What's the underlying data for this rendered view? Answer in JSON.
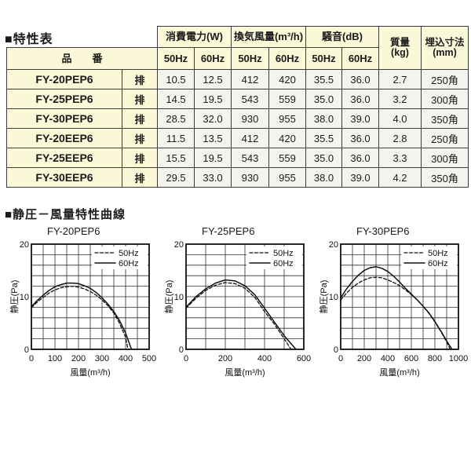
{
  "page": {
    "title": "■特性表",
    "section2_title": "■静圧－風量特性曲線"
  },
  "colors": {
    "header_bg": "#fbf8d8",
    "cell_bg": "#f4f4ee",
    "border": "#3c3c3c",
    "curve": "#111111"
  },
  "table": {
    "header": {
      "product_label": "品　　番",
      "groups": [
        {
          "label": "消費電力(W)",
          "sub": [
            "50Hz",
            "60Hz"
          ]
        },
        {
          "label": "換気風量(m³/h)",
          "sub": [
            "50Hz",
            "60Hz"
          ]
        },
        {
          "label": "騒音(dB)",
          "sub": [
            "50Hz",
            "60Hz"
          ]
        }
      ],
      "mass_label": [
        "質量",
        "(kg)"
      ],
      "dim_label": [
        "埋込寸法",
        "(mm)"
      ]
    },
    "rows": [
      {
        "model": "FY-20PEP6",
        "type": "排",
        "values": [
          "10.5",
          "12.5",
          "412",
          "420",
          "35.5",
          "36.0",
          "2.7",
          "250角"
        ]
      },
      {
        "model": "FY-25PEP6",
        "type": "排",
        "values": [
          "14.5",
          "19.5",
          "543",
          "559",
          "35.0",
          "36.0",
          "3.2",
          "300角"
        ]
      },
      {
        "model": "FY-30PEP6",
        "type": "排",
        "values": [
          "28.5",
          "32.0",
          "930",
          "955",
          "38.0",
          "39.0",
          "4.0",
          "350角"
        ]
      },
      {
        "model": "FY-20EEP6",
        "type": "排",
        "values": [
          "11.5",
          "13.5",
          "412",
          "420",
          "35.5",
          "36.0",
          "2.8",
          "250角"
        ]
      },
      {
        "model": "FY-25EEP6",
        "type": "排",
        "values": [
          "15.5",
          "19.5",
          "543",
          "559",
          "35.0",
          "36.0",
          "3.3",
          "300角"
        ]
      },
      {
        "model": "FY-30EEP6",
        "type": "排",
        "values": [
          "29.5",
          "33.0",
          "930",
          "955",
          "38.0",
          "39.0",
          "4.2",
          "350角"
        ]
      }
    ]
  },
  "chart_data": [
    {
      "type": "line",
      "title": "FY-20PEP6",
      "xlabel": "風量(m³/h)",
      "ylabel": "静圧(Pa)",
      "xlim": [
        0,
        500
      ],
      "ylim": [
        0,
        20
      ],
      "xgrid_step": 50,
      "ygrid_step": 2,
      "xticks": [
        0,
        100,
        200,
        300,
        400,
        500
      ],
      "yticks": [
        0,
        10,
        20
      ],
      "grid": true,
      "legend_position": "top-right",
      "series": [
        {
          "name": "50Hz",
          "style": "dashed",
          "points": [
            [
              0,
              7.9
            ],
            [
              25,
              9.0
            ],
            [
              50,
              9.9
            ],
            [
              75,
              10.7
            ],
            [
              100,
              11.3
            ],
            [
              125,
              11.7
            ],
            [
              150,
              11.9
            ],
            [
              175,
              12.0
            ],
            [
              200,
              11.8
            ],
            [
              225,
              11.5
            ],
            [
              250,
              11.0
            ],
            [
              275,
              10.3
            ],
            [
              300,
              9.4
            ],
            [
              325,
              8.3
            ],
            [
              350,
              6.9
            ],
            [
              375,
              4.9
            ],
            [
              400,
              2.3
            ],
            [
              410,
              0
            ]
          ]
        },
        {
          "name": "60Hz",
          "style": "solid",
          "points": [
            [
              0,
              8.1
            ],
            [
              25,
              9.3
            ],
            [
              50,
              10.3
            ],
            [
              75,
              11.2
            ],
            [
              100,
              11.9
            ],
            [
              125,
              12.3
            ],
            [
              150,
              12.6
            ],
            [
              175,
              12.6
            ],
            [
              200,
              12.5
            ],
            [
              225,
              12.1
            ],
            [
              250,
              11.6
            ],
            [
              275,
              10.8
            ],
            [
              300,
              9.8
            ],
            [
              325,
              8.6
            ],
            [
              350,
              7.2
            ],
            [
              375,
              5.4
            ],
            [
              400,
              3.1
            ],
            [
              425,
              0
            ]
          ]
        }
      ]
    },
    {
      "type": "line",
      "title": "FY-25PEP6",
      "xlabel": "風量(m³/h)",
      "ylabel": "静圧(Pa)",
      "xlim": [
        0,
        600
      ],
      "ylim": [
        0,
        20
      ],
      "xgrid_step": 100,
      "ygrid_step": 2,
      "xticks": [
        0,
        200,
        400,
        600
      ],
      "yticks": [
        0,
        10,
        20
      ],
      "grid": true,
      "legend_position": "top-right",
      "series": [
        {
          "name": "50Hz",
          "style": "dashed",
          "points": [
            [
              0,
              7.8
            ],
            [
              50,
              9.7
            ],
            [
              100,
              11.2
            ],
            [
              150,
              12.2
            ],
            [
              200,
              12.7
            ],
            [
              250,
              12.5
            ],
            [
              300,
              11.6
            ],
            [
              350,
              9.9
            ],
            [
              400,
              7.2
            ],
            [
              450,
              4.8
            ],
            [
              500,
              2.0
            ],
            [
              535,
              0
            ]
          ]
        },
        {
          "name": "60Hz",
          "style": "solid",
          "points": [
            [
              0,
              8.0
            ],
            [
              50,
              10.0
            ],
            [
              100,
              11.5
            ],
            [
              150,
              12.6
            ],
            [
              200,
              13.2
            ],
            [
              250,
              13.0
            ],
            [
              300,
              12.1
            ],
            [
              350,
              10.4
            ],
            [
              400,
              7.8
            ],
            [
              450,
              5.2
            ],
            [
              500,
              2.6
            ],
            [
              560,
              0
            ]
          ]
        }
      ]
    },
    {
      "type": "line",
      "title": "FY-30PEP6",
      "xlabel": "風量(m³/h)",
      "ylabel": "静圧(Pa)",
      "xlim": [
        0,
        1000
      ],
      "ylim": [
        0,
        20
      ],
      "xgrid_step": 100,
      "ygrid_step": 2,
      "xticks": [
        0,
        200,
        400,
        600,
        800,
        1000
      ],
      "yticks": [
        0,
        10,
        20
      ],
      "grid": true,
      "legend_position": "top-right",
      "series": [
        {
          "name": "50Hz",
          "style": "dashed",
          "points": [
            [
              0,
              9.4
            ],
            [
              50,
              10.7
            ],
            [
              100,
              11.8
            ],
            [
              150,
              12.6
            ],
            [
              200,
              13.2
            ],
            [
              250,
              13.6
            ],
            [
              300,
              13.7
            ],
            [
              350,
              13.6
            ],
            [
              400,
              13.2
            ],
            [
              450,
              12.7
            ],
            [
              500,
              12.1
            ],
            [
              550,
              11.3
            ],
            [
              600,
              10.4
            ],
            [
              650,
              9.4
            ],
            [
              700,
              8.2
            ],
            [
              750,
              6.8
            ],
            [
              800,
              5.2
            ],
            [
              850,
              3.4
            ],
            [
              900,
              1.4
            ],
            [
              930,
              0
            ]
          ]
        },
        {
          "name": "60Hz",
          "style": "solid",
          "points": [
            [
              0,
              9.8
            ],
            [
              50,
              11.5
            ],
            [
              100,
              12.9
            ],
            [
              150,
              14.1
            ],
            [
              200,
              15.0
            ],
            [
              250,
              15.5
            ],
            [
              300,
              15.7
            ],
            [
              350,
              15.4
            ],
            [
              400,
              14.8
            ],
            [
              450,
              13.9
            ],
            [
              500,
              12.8
            ],
            [
              550,
              11.6
            ],
            [
              600,
              10.5
            ],
            [
              650,
              9.4
            ],
            [
              700,
              8.2
            ],
            [
              750,
              6.9
            ],
            [
              800,
              5.3
            ],
            [
              850,
              3.5
            ],
            [
              900,
              1.6
            ],
            [
              945,
              0
            ]
          ]
        }
      ]
    }
  ]
}
